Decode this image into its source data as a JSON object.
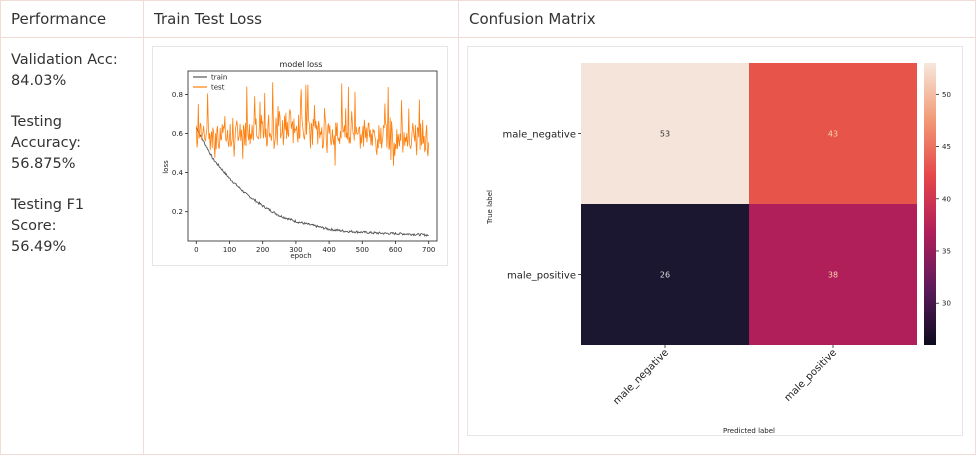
{
  "headers": {
    "performance": "Performance",
    "loss": "Train Test Loss",
    "confusion": "Confusion Matrix"
  },
  "metrics": [
    {
      "label": "Validation Acc:",
      "value": "84.03%"
    },
    {
      "label": "Testing Accuracy:",
      "value": "56.875%"
    },
    {
      "label": "Testing F1 Score:",
      "value": "56.49%"
    }
  ],
  "loss_chart": {
    "title": "model loss",
    "xlabel": "epoch",
    "ylabel": "loss",
    "legend": [
      "train",
      "test"
    ],
    "x_ticks": [
      0,
      100,
      200,
      300,
      400,
      500,
      600,
      700
    ],
    "y_ticks": [
      "0.2",
      "0.4",
      "0.6",
      "0.8"
    ],
    "colors": {
      "train": "#555555",
      "test": "#ff7f0e"
    }
  },
  "confusion_chart": {
    "xlabel": "Predicted label",
    "ylabel": "True label",
    "labels": [
      "male_negative",
      "male_positive"
    ],
    "cells": [
      "53",
      "43",
      "26",
      "38"
    ],
    "colorbar_ticks": [
      "50",
      "45",
      "40",
      "35",
      "30"
    ],
    "colors": {
      "c53": "#f4e4da",
      "c43": "#e6544a",
      "c26": "#1b1730",
      "c38": "#b01f5a"
    }
  },
  "chart_data": [
    {
      "type": "line",
      "title": "model loss",
      "xlabel": "epoch",
      "ylabel": "loss",
      "xlim": [
        0,
        700
      ],
      "ylim": [
        0.05,
        0.92
      ],
      "legend": "top-left",
      "series": [
        {
          "name": "train",
          "x": [
            0,
            50,
            100,
            150,
            200,
            250,
            300,
            350,
            400,
            450,
            500,
            550,
            600,
            650,
            700
          ],
          "values": [
            0.63,
            0.47,
            0.37,
            0.29,
            0.23,
            0.18,
            0.15,
            0.13,
            0.11,
            0.1,
            0.095,
            0.09,
            0.088,
            0.085,
            0.08
          ]
        },
        {
          "name": "test",
          "x": [
            0,
            50,
            100,
            150,
            200,
            250,
            300,
            350,
            400,
            450,
            500,
            550,
            600,
            650,
            700
          ],
          "values": [
            0.62,
            0.58,
            0.6,
            0.61,
            0.62,
            0.63,
            0.62,
            0.61,
            0.6,
            0.59,
            0.58,
            0.57,
            0.57,
            0.58,
            0.58
          ]
        }
      ]
    },
    {
      "type": "heatmap",
      "xlabel": "Predicted label",
      "ylabel": "True label",
      "rows": [
        "male_negative",
        "male_positive"
      ],
      "columns": [
        "male_negative",
        "male_positive"
      ],
      "values": [
        [
          53,
          43
        ],
        [
          26,
          38
        ]
      ],
      "colorbar_range": [
        26,
        53
      ]
    }
  ]
}
